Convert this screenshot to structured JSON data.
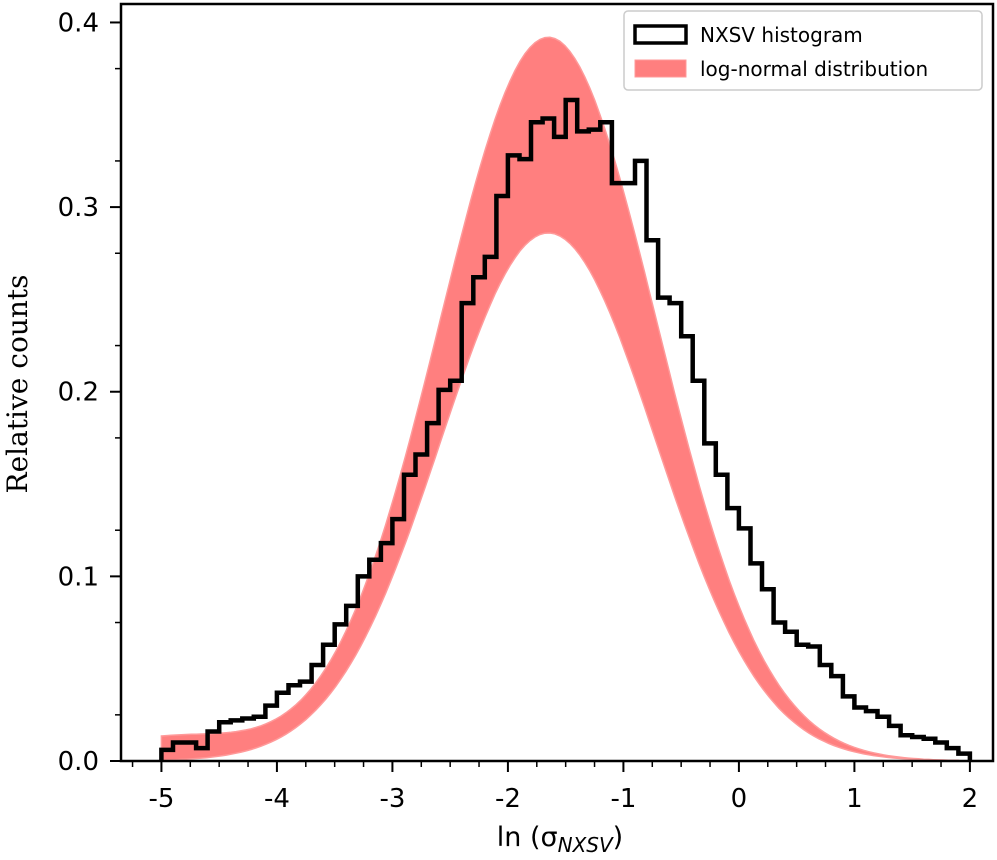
{
  "chart_data": {
    "type": "histogram",
    "xlabel": "ln (σ_NXSV)",
    "xlabel_main": "ln (σ",
    "xlabel_sub": "NXSV",
    "xlabel_close": ")",
    "ylabel": "Relative counts",
    "xlim": [
      -5.35,
      2.2
    ],
    "ylim": [
      0.0,
      0.41
    ],
    "x_ticks": [
      -5,
      -4,
      -3,
      -2,
      -1,
      0,
      1,
      2
    ],
    "x_tick_labels": [
      "-5",
      "-4",
      "-3",
      "-2",
      "-1",
      "0",
      "1",
      "2"
    ],
    "y_ticks": [
      0.0,
      0.1,
      0.2,
      0.3,
      0.4
    ],
    "y_tick_labels": [
      "0.0",
      "0.1",
      "0.2",
      "0.3",
      "0.4"
    ],
    "legend": {
      "position": "top-right",
      "entries": [
        {
          "label": "NXSV histogram",
          "style": "step"
        },
        {
          "label": "log-normal distribution",
          "style": "band"
        }
      ]
    },
    "series": [
      {
        "name": "NXSV histogram",
        "color": "#000000",
        "bin_start": -5.0,
        "bin_width": 0.1,
        "values": [
          0.006,
          0.01,
          0.01,
          0.007,
          0.016,
          0.021,
          0.022,
          0.023,
          0.024,
          0.03,
          0.037,
          0.041,
          0.043,
          0.052,
          0.063,
          0.074,
          0.084,
          0.1,
          0.109,
          0.118,
          0.131,
          0.155,
          0.166,
          0.183,
          0.201,
          0.206,
          0.248,
          0.262,
          0.273,
          0.306,
          0.328,
          0.326,
          0.346,
          0.348,
          0.338,
          0.358,
          0.341,
          0.342,
          0.346,
          0.313,
          0.313,
          0.325,
          0.282,
          0.251,
          0.248,
          0.23,
          0.206,
          0.172,
          0.155,
          0.137,
          0.126,
          0.107,
          0.093,
          0.075,
          0.07,
          0.063,
          0.062,
          0.052,
          0.046,
          0.035,
          0.029,
          0.027,
          0.024,
          0.019,
          0.014,
          0.013,
          0.012,
          0.01,
          0.007,
          0.004
        ]
      },
      {
        "name": "log-normal distribution",
        "color": "#ff7f7f",
        "mu": -1.65,
        "sigma_lower": 0.94,
        "sigma_upper": 0.94,
        "peak_lower": 0.286,
        "peak_upper": 0.392,
        "x_range": [
          -5.0,
          1.9
        ]
      }
    ]
  }
}
